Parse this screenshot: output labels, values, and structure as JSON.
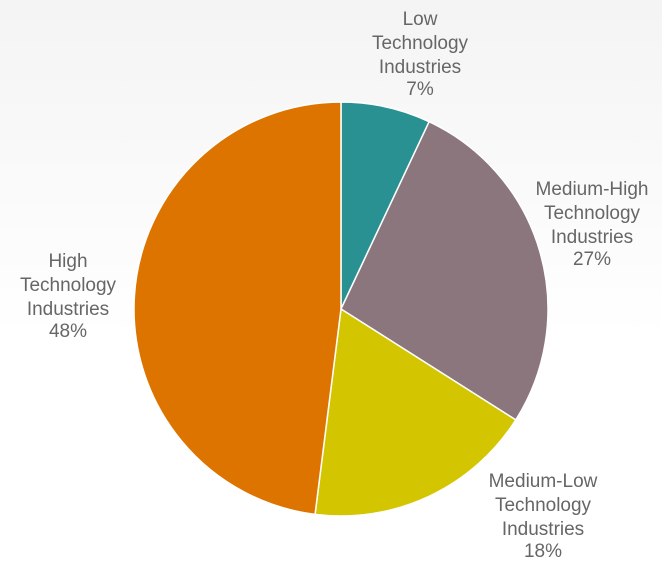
{
  "chart_data": {
    "type": "pie",
    "categories": [
      "Low Technology Industries",
      "Medium-High Technology Industries",
      "Medium-Low Technology Industries",
      "High Technology Industries"
    ],
    "values": [
      7,
      27,
      18,
      48
    ],
    "value_labels": [
      "7%",
      "27%",
      "18%",
      "48%"
    ],
    "colors": [
      "#2a9193",
      "#8b767d",
      "#d3c500",
      "#de7400"
    ]
  }
}
